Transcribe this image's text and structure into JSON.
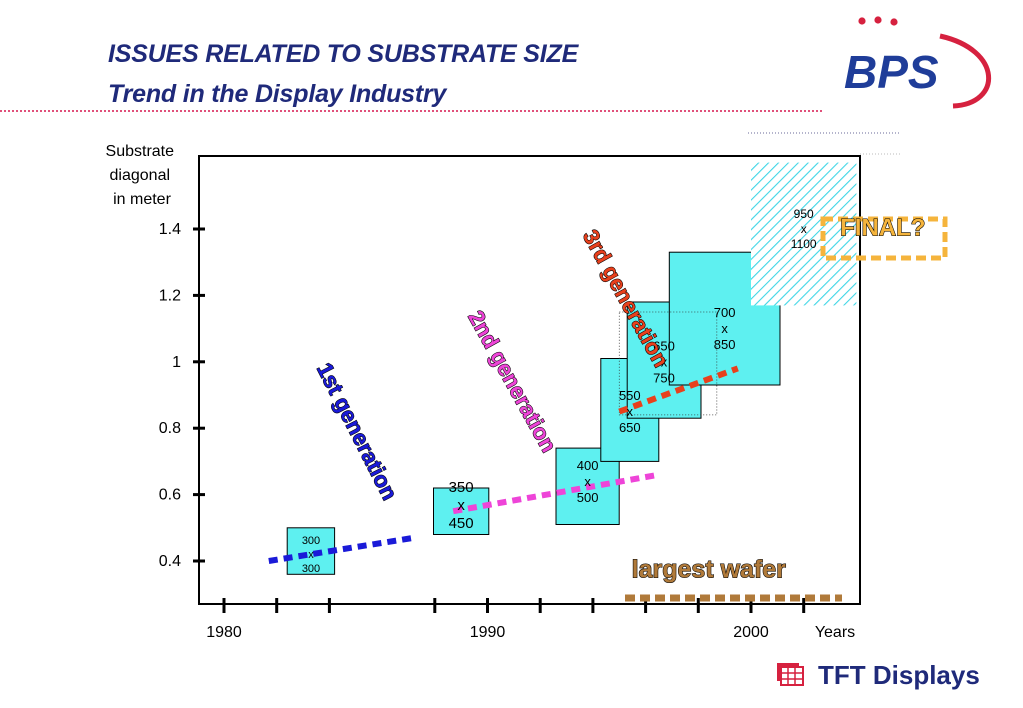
{
  "header": {
    "title_line1": "ISSUES RELATED TO SUBSTRATE SIZE",
    "title_line2": "Trend in the Display Industry"
  },
  "brand": {
    "logo_text": "BPS",
    "footer_text": "TFT Displays",
    "colors": {
      "title": "#1f2a7a",
      "logo_blue": "#1f3d99",
      "logo_red": "#d6213f",
      "rule": "#e0507a"
    }
  },
  "chart_data": {
    "type": "scatter",
    "ylabel": "Substrate diagonal in meter",
    "xlabel": "Years",
    "xlim": [
      1980,
      2005
    ],
    "ylim": [
      0.28,
      1.6
    ],
    "y_ticks": [
      0.4,
      0.6,
      0.8,
      1,
      1.2,
      1.4
    ],
    "y_tick_labels": [
      "0.4",
      "0.6",
      "0.8",
      "1",
      "1.2",
      "1.4"
    ],
    "x_tick_labels": [
      {
        "year": 1980,
        "label": "1980"
      },
      {
        "year": 1990,
        "label": "1990"
      },
      {
        "year": 2000,
        "label": "2000"
      }
    ],
    "x_minor_ticks": [
      1982,
      1984,
      1988,
      1992,
      1994,
      1996,
      1998,
      2002
    ],
    "substrates": [
      {
        "label": [
          "300",
          "x",
          "300"
        ],
        "year": 1983.3,
        "diagonal": 0.42,
        "span": [
          0.36,
          0.5
        ],
        "x_half": 0.9,
        "fill": "#5ef0f0",
        "hatch": false,
        "font": 11
      },
      {
        "label": [
          "350",
          "x",
          "450"
        ],
        "year": 1989.0,
        "diagonal": 0.57,
        "span": [
          0.48,
          0.62
        ],
        "x_half": 1.05,
        "fill": "#5ef0f0",
        "hatch": false,
        "font": 15
      },
      {
        "label": [
          "400",
          "x",
          "500"
        ],
        "year": 1993.8,
        "diagonal": 0.64,
        "span": [
          0.51,
          0.74
        ],
        "x_half": 1.2,
        "fill": "#5ef0f0",
        "hatch": false,
        "font": 13
      },
      {
        "label": [
          "550",
          "x",
          "650"
        ],
        "year": 1995.4,
        "diagonal": 0.85,
        "span": [
          0.7,
          1.01
        ],
        "x_half": 1.1,
        "fill": "#5ef0f0",
        "hatch": false,
        "font": 13
      },
      {
        "label": [
          "650",
          "x",
          "750"
        ],
        "year": 1996.7,
        "diagonal": 1.0,
        "span": [
          0.83,
          1.18
        ],
        "x_half": 1.4,
        "fill": "#5ef0f0",
        "hatch": false,
        "font": 13
      },
      {
        "label": [
          "700",
          "x",
          "850"
        ],
        "year": 1999.0,
        "diagonal": 1.1,
        "span": [
          0.93,
          1.33
        ],
        "x_half": 2.1,
        "fill": "#5ef0f0",
        "hatch": false,
        "font": 13
      },
      {
        "label": [
          "950",
          "x",
          "1100"
        ],
        "year": 2002.0,
        "diagonal": 1.4,
        "span": [
          1.17,
          1.6
        ],
        "x_half": 2.0,
        "fill": "#ffffff",
        "hatch": true,
        "font": 12
      }
    ],
    "trend_lines": [
      {
        "name": "1st generation",
        "color": "#1a1ad8",
        "from": [
          1981.7,
          0.4
        ],
        "to": [
          1987.2,
          0.47
        ]
      },
      {
        "name": "2nd generation",
        "color": "#ee44d8",
        "from": [
          1988.7,
          0.55
        ],
        "to": [
          1996.5,
          0.66
        ]
      },
      {
        "name": "3rd generation",
        "color": "#e8401c",
        "from": [
          1995.0,
          0.85
        ],
        "to": [
          1999.5,
          0.98
        ]
      }
    ],
    "annotations": [
      {
        "text": "1st generation",
        "color": "#1a1ad8",
        "at": [
          1984.8,
          0.78
        ],
        "angle": 63,
        "size": 22
      },
      {
        "text": "2nd generation",
        "color": "#ee44d8",
        "at": [
          1990.7,
          0.93
        ],
        "angle": 61,
        "size": 22
      },
      {
        "text": "3rd generation",
        "color": "#e8401c",
        "at": [
          1995.0,
          1.18
        ],
        "angle": 61,
        "size": 22
      },
      {
        "text": "FINAL?",
        "color": "#f5b43c",
        "at": [
          2005.0,
          1.38
        ],
        "angle": 0,
        "size": 24
      },
      {
        "text": "largest wafer",
        "color": "#b07a3a",
        "at": [
          1998.4,
          0.35
        ],
        "angle": 0,
        "size": 25
      }
    ]
  }
}
